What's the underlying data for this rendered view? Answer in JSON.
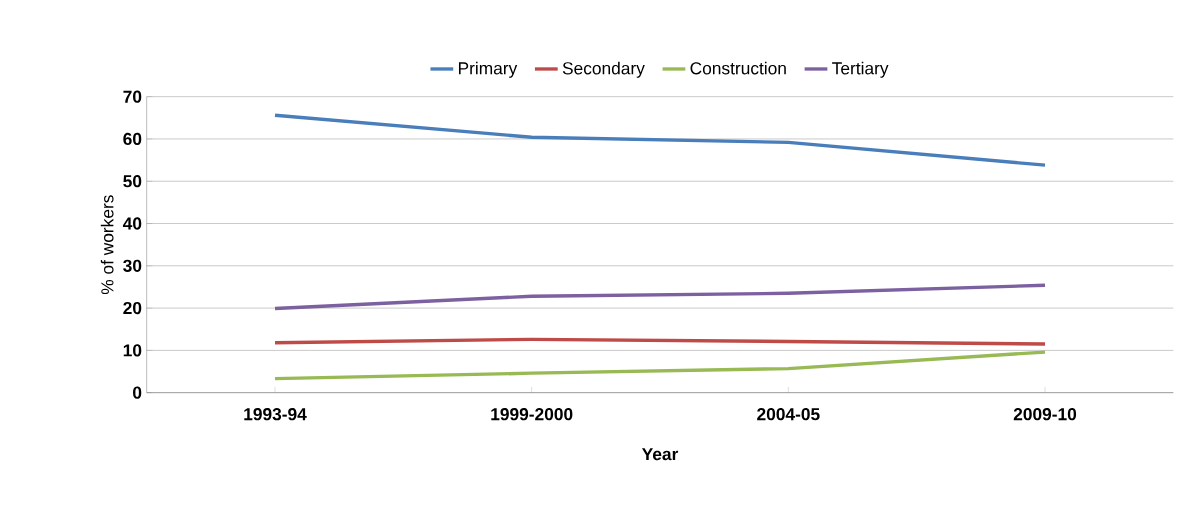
{
  "chart_data": {
    "type": "line",
    "xlabel": "Year",
    "ylabel": "% of workers",
    "categories": [
      "1993-94",
      "1999-2000",
      "2004-05",
      "2009-10"
    ],
    "series": [
      {
        "name": "Primary",
        "color": "#4a7ebb",
        "values": [
          65.6,
          60.4,
          59.2,
          53.8
        ]
      },
      {
        "name": "Secondary",
        "color": "#be4b48",
        "values": [
          11.8,
          12.6,
          12.1,
          11.5
        ]
      },
      {
        "name": "Construction",
        "color": "#98b954",
        "values": [
          3.3,
          4.6,
          5.7,
          9.6
        ]
      },
      {
        "name": "Tertiary",
        "color": "#7d60a0",
        "values": [
          19.9,
          22.8,
          23.5,
          25.4
        ]
      }
    ],
    "ylim": [
      0,
      70
    ],
    "yticks": [
      0,
      10,
      20,
      30,
      40,
      50,
      60,
      70
    ],
    "grid": "y",
    "legend": "top",
    "marker": "none",
    "line_style": "solid"
  }
}
